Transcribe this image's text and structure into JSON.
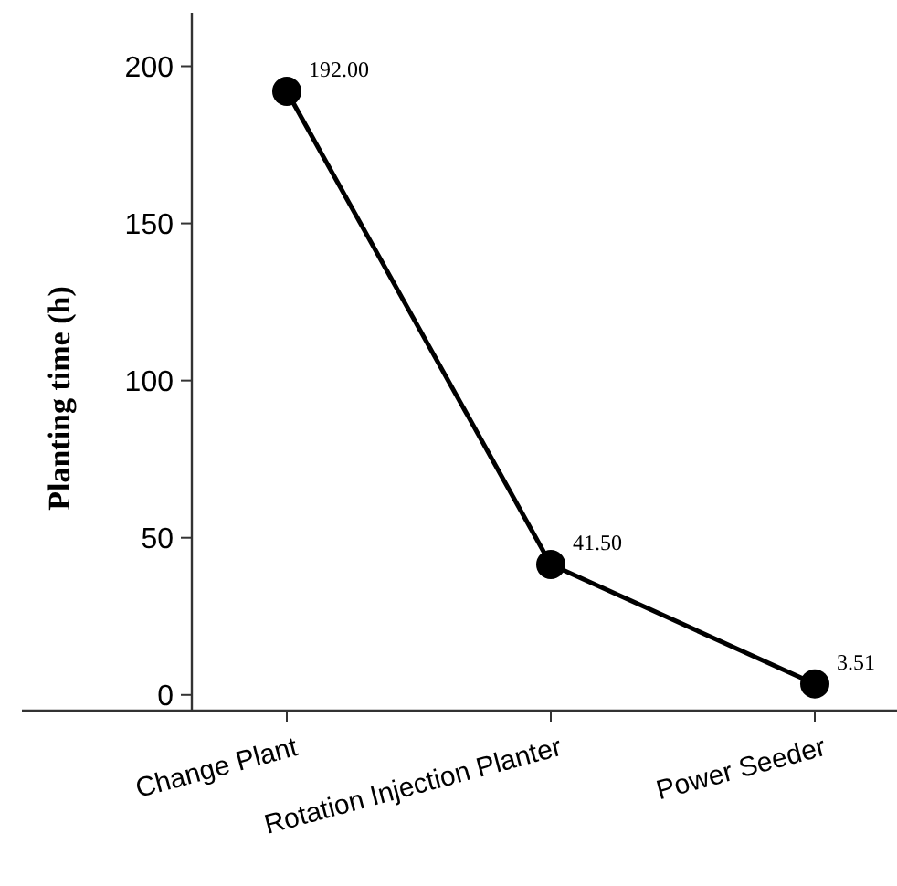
{
  "chart_data": {
    "type": "line",
    "ylabel": "Planting time (h)",
    "categories": [
      "Change Plant",
      "Rotation Injection Planter",
      "Power Seeder"
    ],
    "series": [
      {
        "color": "#000000",
        "values": [
          192.0,
          41.5,
          3.51
        ],
        "value_labels": [
          "192.00",
          "41.50",
          "3.51"
        ]
      }
    ],
    "ylim": [
      -5,
      217
    ],
    "yticks": [
      0,
      50,
      100,
      150,
      200
    ],
    "marker": "circle",
    "line_style": "solid",
    "grid": false
  }
}
